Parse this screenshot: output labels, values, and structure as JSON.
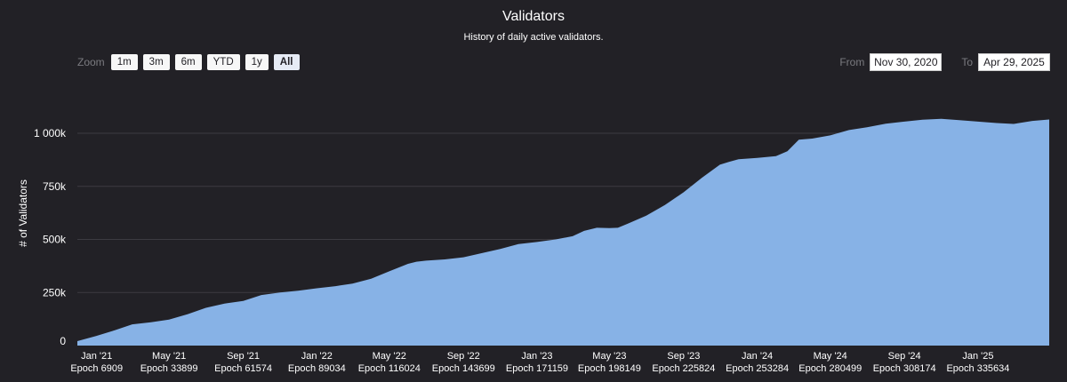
{
  "chart_data": {
    "type": "area",
    "title": "Validators",
    "subtitle": "History of daily active validators.",
    "ylabel": "# of Validators",
    "ylim": [
      0,
      1000000
    ],
    "y_ticks": [
      {
        "value": 0,
        "label": "0"
      },
      {
        "value": 250000,
        "label": "250k"
      },
      {
        "value": 500000,
        "label": "500k"
      },
      {
        "value": 750000,
        "label": "750k"
      },
      {
        "value": 1000000,
        "label": "1 000k"
      }
    ],
    "x_range": [
      "2020-11-30",
      "2025-04-29"
    ],
    "x_ticks": [
      {
        "date": "2021-01-01",
        "label": "Jan '21",
        "epoch": "Epoch 6909"
      },
      {
        "date": "2021-05-01",
        "label": "May '21",
        "epoch": "Epoch 33899"
      },
      {
        "date": "2021-09-01",
        "label": "Sep '21",
        "epoch": "Epoch 61574"
      },
      {
        "date": "2022-01-01",
        "label": "Jan '22",
        "epoch": "Epoch 89034"
      },
      {
        "date": "2022-05-01",
        "label": "May '22",
        "epoch": "Epoch 116024"
      },
      {
        "date": "2022-09-01",
        "label": "Sep '22",
        "epoch": "Epoch 143699"
      },
      {
        "date": "2023-01-01",
        "label": "Jan '23",
        "epoch": "Epoch 171159"
      },
      {
        "date": "2023-05-01",
        "label": "May '23",
        "epoch": "Epoch 198149"
      },
      {
        "date": "2023-09-01",
        "label": "Sep '23",
        "epoch": "Epoch 225824"
      },
      {
        "date": "2024-01-01",
        "label": "Jan '24",
        "epoch": "Epoch 253284"
      },
      {
        "date": "2024-05-01",
        "label": "May '24",
        "epoch": "Epoch 280499"
      },
      {
        "date": "2024-09-01",
        "label": "Sep '24",
        "epoch": "Epoch 308174"
      },
      {
        "date": "2025-01-01",
        "label": "Jan '25",
        "epoch": "Epoch 335634"
      }
    ],
    "series": [
      {
        "color": "#87b2e6",
        "points": [
          [
            "2020-11-30",
            21000
          ],
          [
            "2020-12-31",
            45000
          ],
          [
            "2021-01-31",
            72000
          ],
          [
            "2021-03-01",
            100000
          ],
          [
            "2021-04-01",
            110000
          ],
          [
            "2021-05-01",
            122000
          ],
          [
            "2021-06-01",
            148000
          ],
          [
            "2021-07-01",
            178000
          ],
          [
            "2021-08-01",
            198000
          ],
          [
            "2021-09-01",
            210000
          ],
          [
            "2021-10-01",
            238000
          ],
          [
            "2021-11-01",
            250000
          ],
          [
            "2021-12-01",
            258000
          ],
          [
            "2022-01-01",
            270000
          ],
          [
            "2022-02-01",
            280000
          ],
          [
            "2022-03-01",
            292000
          ],
          [
            "2022-04-01",
            315000
          ],
          [
            "2022-05-01",
            350000
          ],
          [
            "2022-06-01",
            385000
          ],
          [
            "2022-06-15",
            395000
          ],
          [
            "2022-07-01",
            400000
          ],
          [
            "2022-08-01",
            406000
          ],
          [
            "2022-09-01",
            416000
          ],
          [
            "2022-10-01",
            435000
          ],
          [
            "2022-11-01",
            455000
          ],
          [
            "2022-12-01",
            478000
          ],
          [
            "2023-01-01",
            488000
          ],
          [
            "2023-02-01",
            500000
          ],
          [
            "2023-03-01",
            515000
          ],
          [
            "2023-03-20",
            540000
          ],
          [
            "2023-04-10",
            555000
          ],
          [
            "2023-05-01",
            553000
          ],
          [
            "2023-05-15",
            555000
          ],
          [
            "2023-06-01",
            575000
          ],
          [
            "2023-07-01",
            612000
          ],
          [
            "2023-08-01",
            662000
          ],
          [
            "2023-09-01",
            722000
          ],
          [
            "2023-10-01",
            790000
          ],
          [
            "2023-10-31",
            852000
          ],
          [
            "2023-11-15",
            865000
          ],
          [
            "2023-12-01",
            878000
          ],
          [
            "2024-01-01",
            884000
          ],
          [
            "2024-02-01",
            892000
          ],
          [
            "2024-02-20",
            915000
          ],
          [
            "2024-03-10",
            970000
          ],
          [
            "2024-04-01",
            975000
          ],
          [
            "2024-05-01",
            990000
          ],
          [
            "2024-06-01",
            1015000
          ],
          [
            "2024-07-01",
            1028000
          ],
          [
            "2024-08-01",
            1045000
          ],
          [
            "2024-09-01",
            1055000
          ],
          [
            "2024-10-01",
            1064000
          ],
          [
            "2024-11-01",
            1068000
          ],
          [
            "2024-12-01",
            1062000
          ],
          [
            "2025-01-01",
            1055000
          ],
          [
            "2025-02-01",
            1048000
          ],
          [
            "2025-03-01",
            1044000
          ],
          [
            "2025-04-01",
            1058000
          ],
          [
            "2025-04-29",
            1065000
          ]
        ]
      }
    ],
    "grid": true,
    "legend": "none"
  },
  "controls": {
    "zoom_label": "Zoom",
    "zoom_buttons": [
      "1m",
      "3m",
      "6m",
      "YTD",
      "1y",
      "All"
    ],
    "zoom_active": "All",
    "from_label": "From",
    "from_value": "Nov 30, 2020",
    "to_label": "To",
    "to_value": "Apr 29, 2025"
  }
}
